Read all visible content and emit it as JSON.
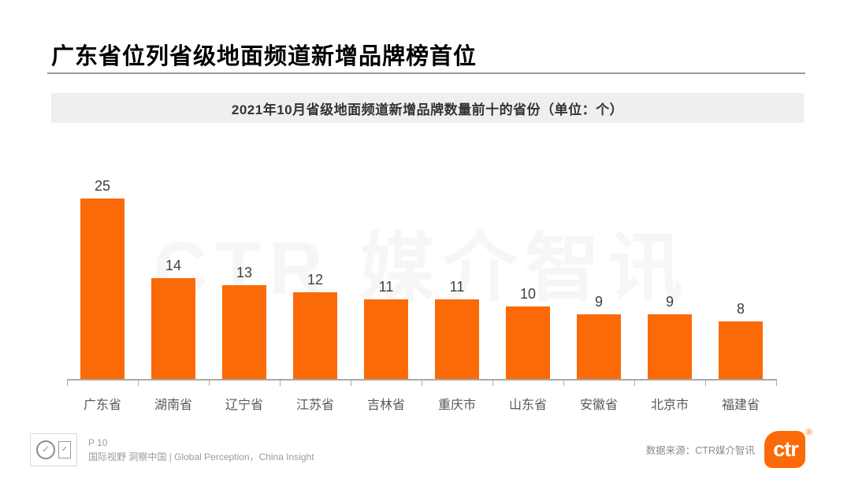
{
  "page": {
    "title": "广东省位列省级地面频道新增品牌榜首位"
  },
  "chart_data": {
    "type": "bar",
    "title": "2021年10月省级地面频道新增品牌数量前十的省份（单位：个）",
    "categories": [
      "广东省",
      "湖南省",
      "辽宁省",
      "江苏省",
      "吉林省",
      "重庆市",
      "山东省",
      "安徽省",
      "北京市",
      "福建省"
    ],
    "values": [
      25,
      14,
      13,
      12,
      11,
      11,
      10,
      9,
      9,
      8
    ],
    "xlabel": "",
    "ylabel": "",
    "ylim": [
      0,
      25
    ],
    "grid": false,
    "legend": "none",
    "value_labels": true,
    "bar_color": "#fb6a07"
  },
  "watermark": "CTR 媒介智讯",
  "footer": {
    "page_number": "P 10",
    "tagline": "国际视野 洞察中国 | Global Perception，China Insight",
    "source": "数据来源：CTR媒介智讯",
    "logo_text": "ctr",
    "registered_mark": "®",
    "badge_check": "✓"
  },
  "colors": {
    "accent_orange": "#fb6a07",
    "subtitle_band_bg": "#efefef",
    "axis_gray": "#a9a9a9",
    "watermark_gray": "#f6f6f6"
  }
}
